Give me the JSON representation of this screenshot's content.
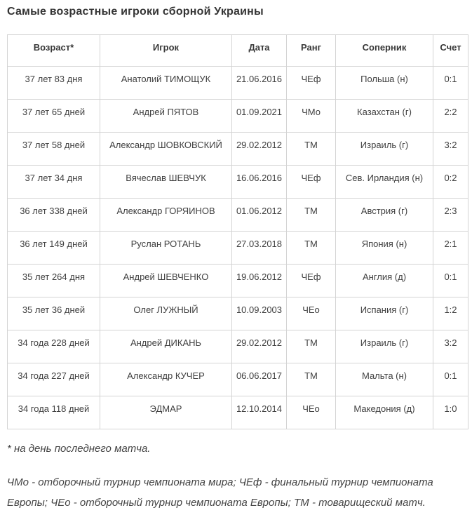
{
  "page": {
    "title": "Самые возрастные игроки сборной Украины",
    "footnote": "* на день последнего матча.",
    "legend": "ЧМо - отборочный турнир чемпионата мира; ЧЕф - финальный турнир чемпионата Европы; ЧЕо - отборочный турнир чемпионата Европы; ТМ - товарищеский матч."
  },
  "colors": {
    "border": "#d4d4d4",
    "title_text": "#353535",
    "body_text": "#404040"
  },
  "table": {
    "columns": [
      "Возраст*",
      "Игрок",
      "Дата",
      "Ранг",
      "Соперник",
      "Счет"
    ],
    "rows": [
      [
        "37 лет 83 дня",
        "Анатолий ТИМОЩУК",
        "21.06.2016",
        "ЧЕф",
        "Польша (н)",
        "0:1"
      ],
      [
        "37 лет 65 дней",
        "Андрей ПЯТОВ",
        "01.09.2021",
        "ЧМо",
        "Казахстан (г)",
        "2:2"
      ],
      [
        "37 лет 58 дней",
        "Александр ШОВКОВСКИЙ",
        "29.02.2012",
        "ТМ",
        "Израиль (г)",
        "3:2"
      ],
      [
        "37 лет 34 дня",
        "Вячеслав ШЕВЧУК",
        "16.06.2016",
        "ЧЕф",
        "Сев. Ирландия (н)",
        "0:2"
      ],
      [
        "36 лет 338 дней",
        "Александр ГОРЯИНОВ",
        "01.06.2012",
        "ТМ",
        "Австрия (г)",
        "2:3"
      ],
      [
        "36 лет 149 дней",
        "Руслан РОТАНЬ",
        "27.03.2018",
        "ТМ",
        "Япония (н)",
        "2:1"
      ],
      [
        "35 лет 264 дня",
        "Андрей ШЕВЧЕНКО",
        "19.06.2012",
        "ЧЕф",
        "Англия (д)",
        "0:1"
      ],
      [
        "35 лет 36 дней",
        "Олег ЛУЖНЫЙ",
        "10.09.2003",
        "ЧЕо",
        "Испания (г)",
        "1:2"
      ],
      [
        "34 года 228 дней",
        "Андрей ДИКАНЬ",
        "29.02.2012",
        "ТМ",
        "Израиль (г)",
        "3:2"
      ],
      [
        "34 года 227 дней",
        "Александр КУЧЕР",
        "06.06.2017",
        "ТМ",
        "Мальта (н)",
        "0:1"
      ],
      [
        "34 года 118 дней",
        "ЭДМАР",
        "12.10.2014",
        "ЧЕо",
        "Македония (д)",
        "1:0"
      ]
    ]
  }
}
